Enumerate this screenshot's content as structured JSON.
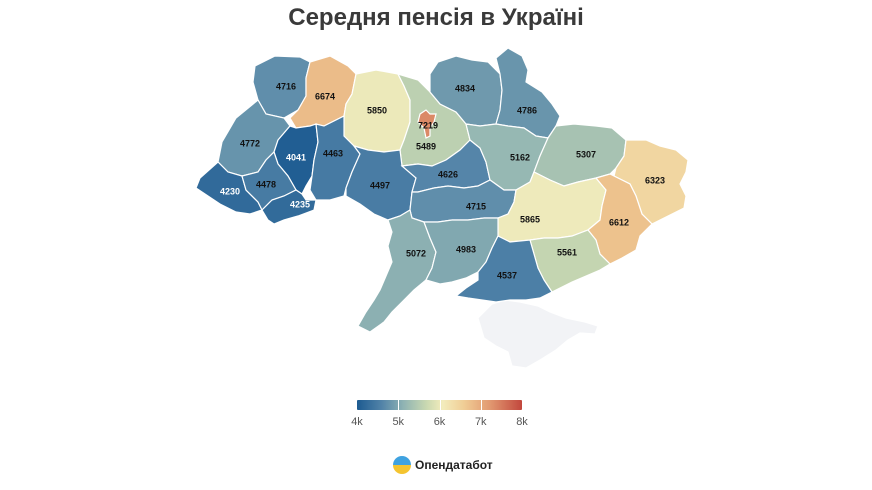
{
  "title": "Середня пенсія в Україні",
  "map": {
    "regions": [
      {
        "id": "volyn",
        "value": "4716"
      },
      {
        "id": "rivne",
        "value": "6674"
      },
      {
        "id": "zhytomyr",
        "value": "5850"
      },
      {
        "id": "kyiv-oblast",
        "value": "5489"
      },
      {
        "id": "kyiv-city",
        "value": "7219"
      },
      {
        "id": "chernihiv",
        "value": "4834"
      },
      {
        "id": "sumy",
        "value": "4786"
      },
      {
        "id": "lviv",
        "value": "4772"
      },
      {
        "id": "ternopil",
        "value": "4041"
      },
      {
        "id": "khmelnytskyi",
        "value": "4463"
      },
      {
        "id": "zakarpattia",
        "value": "4230"
      },
      {
        "id": "ivano-frankivsk",
        "value": "4478"
      },
      {
        "id": "chernivtsi",
        "value": "4235"
      },
      {
        "id": "vinnytsia",
        "value": "4497"
      },
      {
        "id": "cherkasy",
        "value": "4626"
      },
      {
        "id": "poltava",
        "value": "5162"
      },
      {
        "id": "kharkiv",
        "value": "5307"
      },
      {
        "id": "luhansk",
        "value": "6323"
      },
      {
        "id": "kirovohrad",
        "value": "4715"
      },
      {
        "id": "dnipro",
        "value": "5865"
      },
      {
        "id": "donetsk",
        "value": "6612"
      },
      {
        "id": "odesa",
        "value": "5072"
      },
      {
        "id": "mykolaiv",
        "value": "4983"
      },
      {
        "id": "zaporizhzhia",
        "value": "5561"
      },
      {
        "id": "kherson",
        "value": "4537"
      },
      {
        "id": "crimea",
        "value": ""
      }
    ],
    "colors": {
      "c4041": "#1d5b91",
      "c42": "#3b6f9c",
      "c45": "#4e7fa4",
      "c47": "#5f8aa9",
      "c49": "#6c96ab",
      "c50": "#81a6ad",
      "c51": "#95b2ad",
      "c53": "#aac1a9",
      "c55": "#c9d8b1",
      "c58": "#eeedb8",
      "c63": "#f0d29b",
      "c66": "#e8a77a",
      "c72": "#d3735e",
      "nodata": "#f2f3f6"
    }
  },
  "legend": {
    "ticks": [
      "4k",
      "5k",
      "6k",
      "7k",
      "8k"
    ],
    "min": 4000,
    "max": 8000
  },
  "brand": {
    "name": "Опендатабот",
    "logo_icon": "opendatabot-logo-icon"
  }
}
